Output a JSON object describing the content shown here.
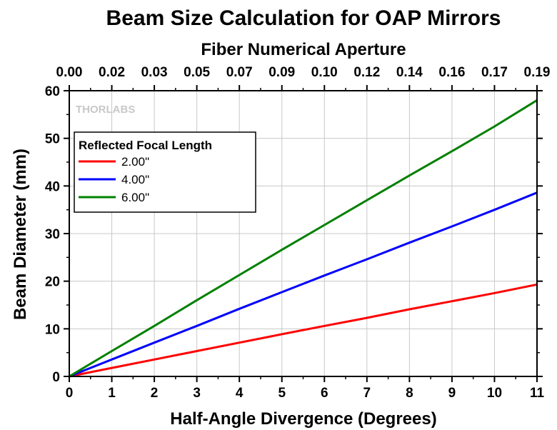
{
  "chart_data": {
    "type": "line",
    "title": "Beam Size Calculation for OAP Mirrors",
    "xlabel": "Half-Angle Divergence (Degrees)",
    "ylabel": "Beam Diameter (mm)",
    "top_xlabel": "Fiber Numerical Aperture",
    "xlim": [
      0,
      11
    ],
    "ylim": [
      0,
      60
    ],
    "x_ticks": [
      "0",
      "1",
      "2",
      "3",
      "4",
      "5",
      "6",
      "7",
      "8",
      "9",
      "10",
      "11"
    ],
    "y_ticks": [
      "0",
      "10",
      "20",
      "30",
      "40",
      "50",
      "60"
    ],
    "top_ticks": [
      "0.00",
      "0.02",
      "0.03",
      "0.05",
      "0.07",
      "0.09",
      "0.10",
      "0.12",
      "0.14",
      "0.16",
      "0.17",
      "0.19"
    ],
    "grid": true,
    "legend": {
      "title": "Reflected Focal Length",
      "placement": "top-left"
    },
    "watermark": "THORLABS",
    "series": [
      {
        "name": "2.00\"",
        "color": "#ff0000",
        "x": [
          0,
          1,
          2,
          3,
          4,
          5,
          6,
          7,
          8,
          9,
          10,
          11
        ],
        "y": [
          0,
          1.78,
          3.55,
          5.33,
          7.1,
          8.87,
          10.6,
          12.3,
          14.1,
          15.8,
          17.5,
          19.3
        ]
      },
      {
        "name": "4.00\"",
        "color": "#0000ff",
        "x": [
          0,
          1,
          2,
          3,
          4,
          5,
          6,
          7,
          8,
          9,
          10,
          11
        ],
        "y": [
          0,
          3.55,
          7.1,
          10.6,
          14.2,
          17.7,
          21.2,
          24.6,
          28.1,
          31.5,
          35.0,
          38.6
        ]
      },
      {
        "name": "6.00\"",
        "color": "#008000",
        "x": [
          0,
          1,
          2,
          3,
          4,
          5,
          6,
          7,
          8,
          9,
          10,
          11
        ],
        "y": [
          0,
          5.33,
          10.6,
          16.0,
          21.3,
          26.6,
          31.8,
          37.0,
          42.2,
          47.3,
          52.5,
          58.0
        ]
      }
    ]
  }
}
